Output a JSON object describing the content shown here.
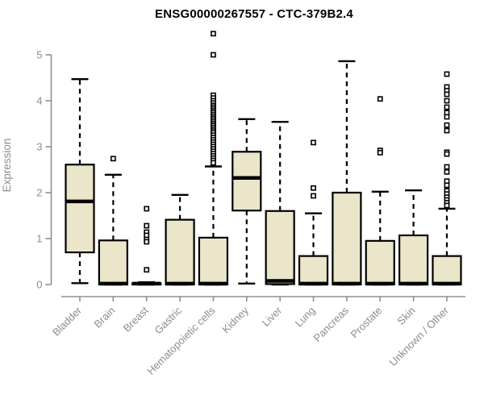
{
  "title": "ENSG00000267557 - CTC-379B2.4",
  "chart_data": {
    "type": "boxplot",
    "title": "ENSG00000267557 - CTC-379B2.4",
    "xlabel": "",
    "ylabel": "Expression",
    "ylim": [
      0,
      5
    ],
    "yticks": [
      0,
      1,
      2,
      3,
      4,
      5
    ],
    "grid": false,
    "legend": "none",
    "categories": [
      "Bladder",
      "Brain",
      "Breast",
      "Gastric",
      "Hematopoietic cells",
      "Kidney",
      "Liver",
      "Lung",
      "Pancreas",
      "Prostate",
      "Skin",
      "Unknown / Other"
    ],
    "boxes": [
      {
        "category": "Bladder",
        "low": 0.03,
        "q1": 0.7,
        "median": 1.81,
        "q3": 2.61,
        "high": 4.47,
        "outliers": []
      },
      {
        "category": "Brain",
        "low": 0.0,
        "q1": 0.0,
        "median": 0.02,
        "q3": 0.96,
        "high": 2.39,
        "outliers": [
          2.74
        ]
      },
      {
        "category": "Breast",
        "low": 0.0,
        "q1": 0.0,
        "median": 0.02,
        "q3": 0.03,
        "high": 0.05,
        "outliers": [
          1.65,
          1.28,
          1.14,
          1.07,
          0.98,
          0.93,
          0.32
        ]
      },
      {
        "category": "Gastric",
        "low": 0.0,
        "q1": 0.0,
        "median": 0.02,
        "q3": 1.41,
        "high": 1.95,
        "outliers": []
      },
      {
        "category": "Hematopoietic cells",
        "low": 0.0,
        "q1": 0.0,
        "median": 0.02,
        "q3": 1.02,
        "high": 2.57,
        "outliers": [
          5.46,
          5.0,
          4.12,
          4.06,
          4.0,
          3.95,
          3.9,
          3.86,
          3.82,
          3.78,
          3.74,
          3.7,
          3.66,
          3.62,
          3.58,
          3.54,
          3.5,
          3.46,
          3.42,
          3.38,
          3.34,
          3.3,
          3.25,
          3.2,
          3.15,
          3.1,
          3.05,
          3.0,
          2.95,
          2.9,
          2.85,
          2.8,
          2.75,
          2.7,
          2.65
        ]
      },
      {
        "category": "Kidney",
        "low": 0.02,
        "q1": 1.61,
        "median": 2.32,
        "q3": 2.89,
        "high": 3.6,
        "outliers": []
      },
      {
        "category": "Liver",
        "low": 0.0,
        "q1": 0.01,
        "median": 0.08,
        "q3": 1.6,
        "high": 3.54,
        "outliers": []
      },
      {
        "category": "Lung",
        "low": 0.0,
        "q1": 0.0,
        "median": 0.02,
        "q3": 0.62,
        "high": 1.55,
        "outliers": [
          3.09,
          2.1,
          1.93
        ]
      },
      {
        "category": "Pancreas",
        "low": 0.0,
        "q1": 0.0,
        "median": 0.02,
        "q3": 2.0,
        "high": 4.86,
        "outliers": []
      },
      {
        "category": "Prostate",
        "low": 0.0,
        "q1": 0.0,
        "median": 0.02,
        "q3": 0.95,
        "high": 2.02,
        "outliers": [
          4.04,
          2.92,
          2.87
        ]
      },
      {
        "category": "Skin",
        "low": 0.0,
        "q1": 0.0,
        "median": 0.02,
        "q3": 1.07,
        "high": 2.05,
        "outliers": []
      },
      {
        "category": "Unknown / Other",
        "low": 0.0,
        "q1": 0.0,
        "median": 0.02,
        "q3": 0.62,
        "high": 1.65,
        "outliers": [
          4.58,
          4.3,
          4.22,
          4.14,
          4.0,
          3.86,
          3.74,
          3.65,
          3.47,
          3.35,
          2.88,
          2.84,
          2.56,
          2.45,
          2.25,
          2.16,
          2.04,
          1.97,
          1.9,
          1.84,
          1.78,
          1.72
        ]
      }
    ],
    "style": {
      "box_fill": "#EBE5C9",
      "box_border": "#000000",
      "median_color": "#000000",
      "whisker_color": "#000000",
      "outlier_stroke": "#000000",
      "outlier_fill": "#FFFFFF",
      "axis_color": "#909090",
      "tick_label_color": "#8C8C8C",
      "title_color": "#000000",
      "background": "#FFFFFF"
    }
  }
}
